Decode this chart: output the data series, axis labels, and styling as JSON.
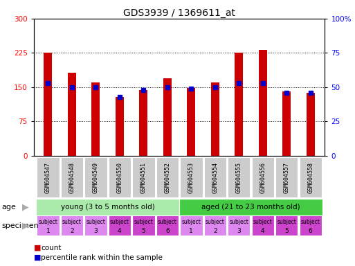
{
  "title": "GDS3939 / 1369611_at",
  "samples": [
    "GSM604547",
    "GSM604548",
    "GSM604549",
    "GSM604550",
    "GSM604551",
    "GSM604552",
    "GSM604553",
    "GSM604554",
    "GSM604555",
    "GSM604556",
    "GSM604557",
    "GSM604558"
  ],
  "counts": [
    225,
    182,
    160,
    128,
    143,
    170,
    148,
    160,
    225,
    232,
    140,
    138
  ],
  "percentile_ranks": [
    53,
    50,
    50,
    43,
    48,
    50,
    49,
    50,
    53,
    53,
    46,
    46
  ],
  "ylim_left": [
    0,
    300
  ],
  "ylim_right": [
    0,
    100
  ],
  "yticks_left": [
    0,
    75,
    150,
    225,
    300
  ],
  "yticks_right": [
    0,
    25,
    50,
    75,
    100
  ],
  "bar_color": "#cc0000",
  "dot_color": "#0000cc",
  "age_groups": [
    {
      "label": "young (3 to 5 months old)",
      "start": 0,
      "end": 6,
      "color": "#aaeaaa"
    },
    {
      "label": "aged (21 to 23 months old)",
      "start": 6,
      "end": 12,
      "color": "#44cc44"
    }
  ],
  "specimen_colors_light": "#dd88ee",
  "specimen_colors_dark": "#cc44cc",
  "specimen_numbers": [
    1,
    2,
    3,
    4,
    5,
    6,
    1,
    2,
    3,
    4,
    5,
    6
  ],
  "age_label": "age",
  "specimen_label": "specimen",
  "legend_count_color": "#cc0000",
  "legend_dot_color": "#0000cc",
  "bg_color": "#ffffff",
  "tick_label_bg": "#cccccc",
  "grid_line_color": "#000000",
  "bar_width": 0.35
}
